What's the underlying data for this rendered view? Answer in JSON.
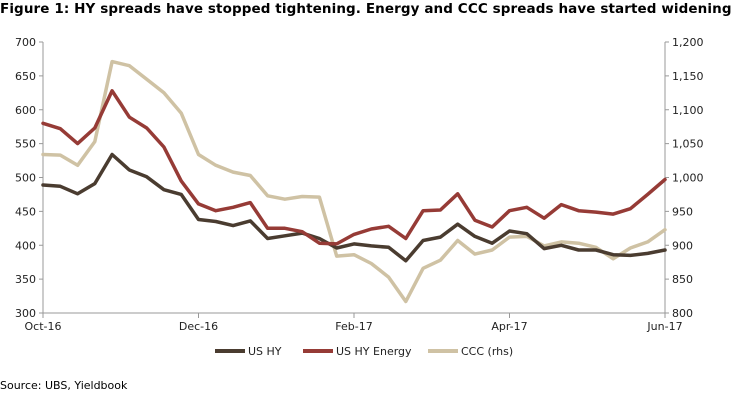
{
  "title": "Figure 1: HY spreads have stopped tightening. Energy and CCC spreads have started widening",
  "source": "Source:  UBS, Yieldbook",
  "chart_data": {
    "type": "line",
    "x_tick_labels": [
      "Oct-16",
      "Dec-16",
      "Feb-17",
      "Apr-17",
      "Jun-17"
    ],
    "x_tick_positions": [
      0,
      9,
      18,
      27,
      36
    ],
    "ylim_left": [
      300,
      700
    ],
    "yticks_left": [
      "300",
      "350",
      "400",
      "450",
      "500",
      "550",
      "600",
      "650",
      "700"
    ],
    "ylim_right": [
      800,
      1200
    ],
    "yticks_right": [
      "800",
      "850",
      "900",
      "950",
      "1,000",
      "1,050",
      "1,100",
      "1,150",
      "1,200"
    ],
    "grid": false,
    "legend": "bottom",
    "series": [
      {
        "name": "US HY",
        "axis": "left",
        "color": "#4a3c30",
        "values": [
          489,
          487,
          476,
          491,
          534,
          511,
          501,
          482,
          475,
          438,
          435,
          429,
          436,
          410,
          414,
          418,
          410,
          396,
          402,
          399,
          397,
          377,
          407,
          412,
          431,
          413,
          403,
          421,
          417,
          395,
          400,
          393,
          393,
          386,
          385,
          388,
          393
        ]
      },
      {
        "name": "US HY Energy",
        "axis": "left",
        "color": "#963b36",
        "values": [
          580,
          572,
          550,
          573,
          628,
          589,
          573,
          545,
          495,
          461,
          451,
          456,
          463,
          425,
          425,
          420,
          403,
          402,
          416,
          424,
          428,
          410,
          451,
          452,
          476,
          437,
          427,
          451,
          456,
          440,
          460,
          451,
          449,
          446,
          454,
          475,
          497
        ]
      },
      {
        "name": "CCC (rhs)",
        "axis": "right",
        "color": "#cfc2a4",
        "values": [
          1034,
          1033,
          1018,
          1053,
          1171,
          1165,
          1145,
          1125,
          1095,
          1034,
          1018,
          1008,
          1003,
          973,
          968,
          972,
          971,
          884,
          886,
          873,
          853,
          817,
          866,
          878,
          907,
          887,
          893,
          912,
          913,
          899,
          905,
          903,
          897,
          880,
          896,
          905,
          923
        ]
      }
    ]
  }
}
